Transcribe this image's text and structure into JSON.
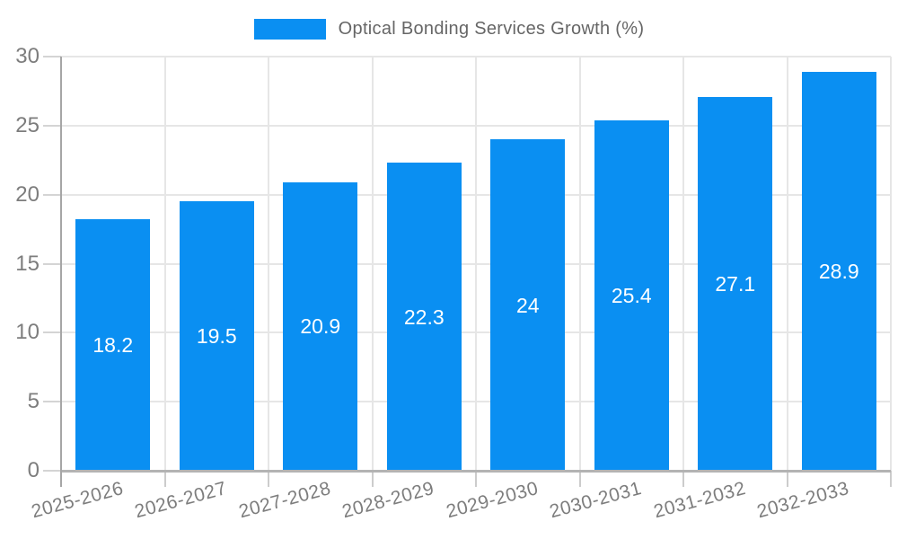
{
  "legend": {
    "label": "Optical Bonding Services Growth (%)"
  },
  "colors": {
    "bar": "#0a8ff2",
    "grid": "#e6e6e6",
    "y_axis_line": "#a6a6a6",
    "x_axis_line": "#b3b3b3",
    "tick": "#cccccc",
    "tick_label_text": "#7d7d7d",
    "legend_text": "#666666",
    "value_label_text": "#ffffff",
    "background": "#ffffff"
  },
  "chart_data": {
    "type": "bar",
    "title": "Optical Bonding Services Growth (%)",
    "series_name": "Optical Bonding Services Growth (%)",
    "categories": [
      "2025-2026",
      "2026-2027",
      "2027-2028",
      "2028-2029",
      "2029-2030",
      "2030-2031",
      "2031-2032",
      "2032-2033"
    ],
    "values": [
      18.2,
      19.5,
      20.9,
      22.3,
      24,
      25.4,
      27.1,
      28.9
    ],
    "value_labels": [
      "18.2",
      "19.5",
      "20.9",
      "22.3",
      "24",
      "25.4",
      "27.1",
      "28.9"
    ],
    "xlabel": "",
    "ylabel": "",
    "ylim": [
      0,
      30
    ],
    "yticks": [
      0,
      5,
      10,
      15,
      20,
      25,
      30
    ],
    "grid": true,
    "legend_position": "top",
    "x_label_rotation_deg": 15,
    "bar_color": "#0a8ff2"
  }
}
